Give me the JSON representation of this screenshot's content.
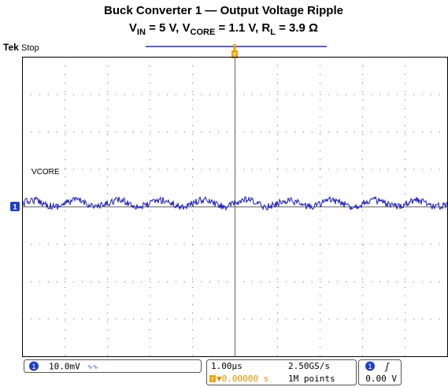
{
  "header": {
    "title": "Buck Converter 1 — Output Voltage Ripple",
    "subtitle": [
      {
        "text": "V"
      },
      {
        "text": "IN",
        "sub": true
      },
      {
        "text": " = 5 V, V"
      },
      {
        "text": "CORE",
        "sub": true
      },
      {
        "text": " = 1.1 V, R"
      },
      {
        "text": "L",
        "sub": true
      },
      {
        "text": " = 3.9 Ω"
      }
    ]
  },
  "scope": {
    "brand": "Tek",
    "state": "Stop",
    "trace_label": "VCORE",
    "channel": "1",
    "trigger_marker": "T",
    "status": {
      "ch_scale": "10.0mV",
      "bandwidth": "∿∿",
      "timebase": "1.00µs",
      "trigger_pos": "▼0.00000 s",
      "sample_rate": "2.50GS/s",
      "record": "1M points",
      "trigger_channel": "1",
      "slope": "ʃ",
      "trigger_level": "0.00 V"
    }
  }
}
